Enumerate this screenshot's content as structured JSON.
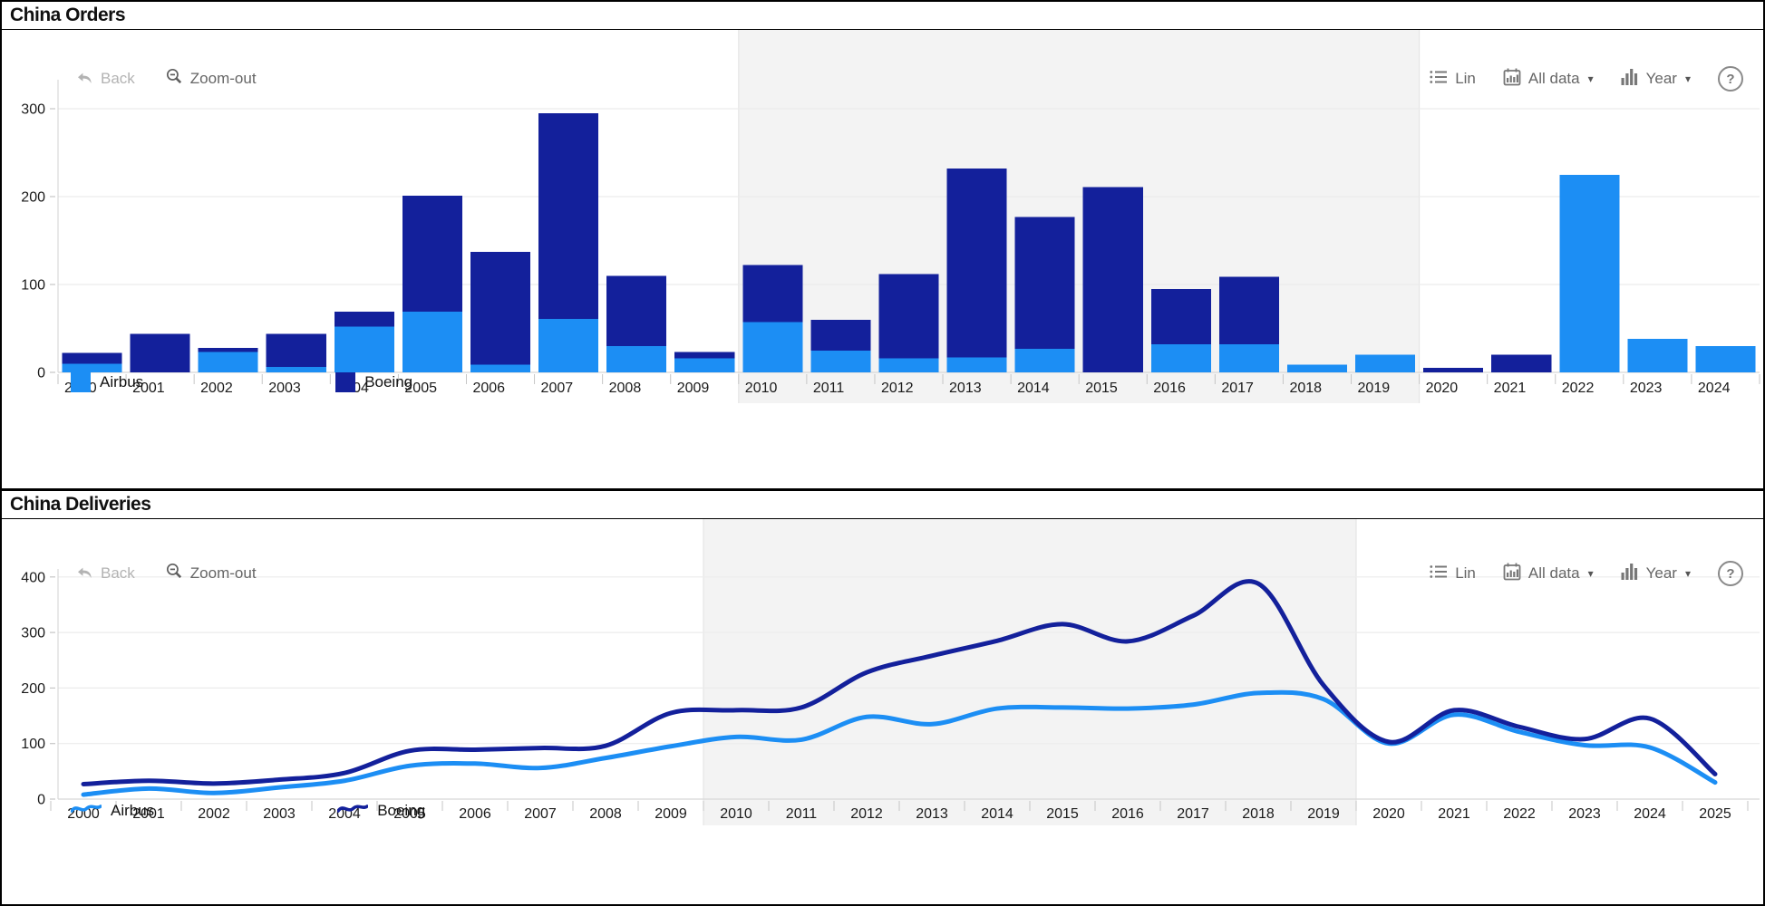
{
  "colors": {
    "airbus": "#1C8EF4",
    "boeing": "#13209B",
    "band": "#f3f3f3",
    "band_edge": "#e2e2e2",
    "grid": "#ececec",
    "axis": "#d8d8d8",
    "tick": "#c6c6c6",
    "label": "#1a1a1a"
  },
  "panels": [
    {
      "title": "China Orders",
      "toolbar": {
        "back": "Back",
        "zoom_out": "Zoom-out",
        "lin": "Lin",
        "all_data": "All data",
        "year": "Year",
        "help": "?"
      },
      "legend": [
        {
          "label": "Airbus",
          "series": "airbus"
        },
        {
          "label": "Boeing",
          "series": "boeing"
        }
      ]
    },
    {
      "title": "China Deliveries",
      "toolbar": {
        "back": "Back",
        "zoom_out": "Zoom-out",
        "lin": "Lin",
        "all_data": "All data",
        "year": "Year",
        "help": "?"
      },
      "legend": [
        {
          "label": "Airbus",
          "series": "airbus"
        },
        {
          "label": "Boeing",
          "series": "boeing"
        }
      ]
    }
  ],
  "chart_data": [
    {
      "type": "bar",
      "stacked": true,
      "title": "China Orders",
      "categories": [
        "2000",
        "2001",
        "2002",
        "2003",
        "2004",
        "2005",
        "2006",
        "2007",
        "2008",
        "2009",
        "2010",
        "2011",
        "2012",
        "2013",
        "2014",
        "2015",
        "2016",
        "2017",
        "2018",
        "2019",
        "2020",
        "2021",
        "2022",
        "2023",
        "2024"
      ],
      "series": [
        {
          "name": "Airbus",
          "color_key": "airbus",
          "values": [
            10,
            0,
            23,
            6,
            52,
            69,
            9,
            61,
            30,
            16,
            57,
            25,
            16,
            17,
            27,
            0,
            32,
            32,
            9,
            20,
            0,
            0,
            225,
            38,
            30
          ]
        },
        {
          "name": "Boeing",
          "color_key": "boeing",
          "values": [
            12,
            44,
            5,
            38,
            17,
            132,
            128,
            234,
            80,
            7,
            65,
            35,
            96,
            215,
            150,
            211,
            63,
            77,
            0,
            0,
            5,
            20,
            0,
            0,
            0
          ]
        }
      ],
      "xlabel": "",
      "ylabel": "",
      "ylim": [
        0,
        320
      ],
      "yticks": [
        0,
        100,
        200,
        300
      ],
      "grid": true,
      "legend_position": "bottom",
      "highlight_band": {
        "from": "2010",
        "to": "2019"
      }
    },
    {
      "type": "line",
      "title": "China Deliveries",
      "x": [
        "2000",
        "2001",
        "2002",
        "2003",
        "2004",
        "2005",
        "2006",
        "2007",
        "2008",
        "2009",
        "2010",
        "2011",
        "2012",
        "2013",
        "2014",
        "2015",
        "2016",
        "2017",
        "2018",
        "2019",
        "2020",
        "2021",
        "2022",
        "2023",
        "2024",
        "2025"
      ],
      "series": [
        {
          "name": "Airbus",
          "color_key": "airbus",
          "values": [
            8,
            19,
            11,
            21,
            33,
            60,
            64,
            56,
            74,
            95,
            112,
            107,
            148,
            135,
            163,
            165,
            163,
            170,
            191,
            180,
            100,
            152,
            121,
            97,
            93,
            30
          ]
        },
        {
          "name": "Boeing",
          "color_key": "boeing",
          "values": [
            27,
            33,
            28,
            35,
            47,
            87,
            89,
            92,
            96,
            155,
            160,
            165,
            228,
            258,
            285,
            315,
            284,
            330,
            388,
            205,
            103,
            160,
            130,
            108,
            145,
            45
          ]
        }
      ],
      "xlabel": "",
      "ylabel": "",
      "ylim": [
        0,
        440
      ],
      "yticks": [
        0,
        100,
        200,
        300,
        400
      ],
      "grid": true,
      "legend_position": "bottom",
      "highlight_band": {
        "from": "2010",
        "to": "2019"
      }
    }
  ]
}
